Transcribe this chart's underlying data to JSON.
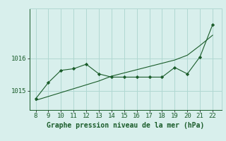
{
  "x": [
    8,
    9,
    10,
    11,
    12,
    13,
    14,
    15,
    16,
    17,
    18,
    19,
    20,
    21,
    22
  ],
  "y_actual": [
    1014.75,
    1015.25,
    1015.63,
    1015.68,
    1015.82,
    1015.52,
    1015.42,
    1015.42,
    1015.42,
    1015.42,
    1015.42,
    1015.72,
    1015.52,
    1016.05,
    1017.05
  ],
  "y_trend": [
    1014.7,
    1014.82,
    1014.94,
    1015.06,
    1015.18,
    1015.3,
    1015.45,
    1015.55,
    1015.65,
    1015.75,
    1015.85,
    1015.95,
    1016.1,
    1016.4,
    1016.72
  ],
  "line_color": "#1a5c2a",
  "bg_color": "#d8efec",
  "grid_color": "#b0d8d2",
  "xlabel": "Graphe pression niveau de la mer (hPa)",
  "yticks": [
    1015,
    1016
  ],
  "xticks": [
    8,
    9,
    10,
    11,
    12,
    13,
    14,
    15,
    16,
    17,
    18,
    19,
    20,
    21,
    22
  ],
  "xlim": [
    7.5,
    22.7
  ],
  "ylim": [
    1014.4,
    1017.55
  ],
  "xlabel_fontsize": 7,
  "tick_fontsize": 6.5
}
